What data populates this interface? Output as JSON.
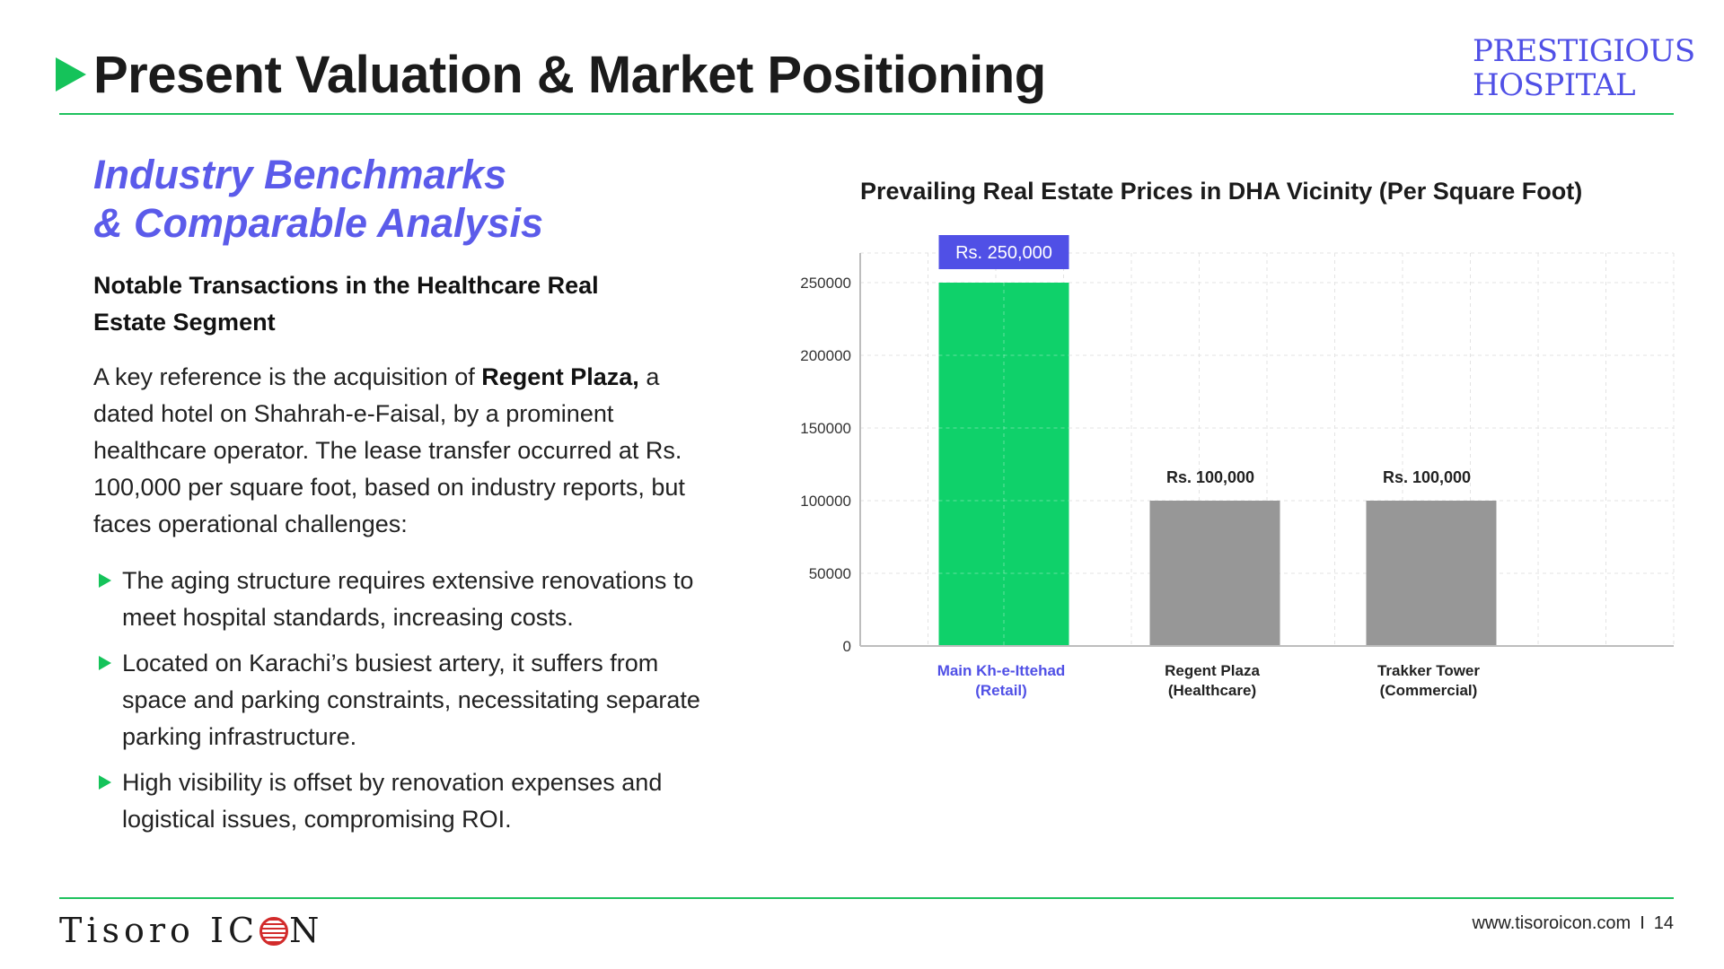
{
  "header": {
    "title": "Present Valuation & Market Positioning",
    "brand_line1": "PRESTIGIOUS",
    "brand_line2": "HOSPITAL"
  },
  "left": {
    "subhead_line1": "Industry Benchmarks",
    "subhead_line2": "& Comparable Analysis",
    "section_label": "Notable Transactions in the Healthcare Real Estate Segment",
    "para_prefix": "A key reference is the acquisition of ",
    "para_bold": "Regent Plaza,",
    "para_suffix": " a dated hotel on Shahrah-e-Faisal, by a prominent healthcare operator. The lease transfer occurred at Rs. 100,000 per square foot, based on industry reports, but faces operational challenges:",
    "bullets": [
      "The aging structure requires extensive renovations to meet hospital standards, increasing costs.",
      "Located on Karachi’s busiest artery, it suffers from space and parking constraints, necessitating separate parking infrastructure.",
      "High visibility is offset by renovation expenses and logistical issues, compromising ROI."
    ]
  },
  "chart_data": {
    "type": "bar",
    "title": "Prevailing Real Estate Prices in DHA Vicinity (Per Square Foot)",
    "categories": [
      [
        "Main Kh-e-Ittehad",
        "(Retail)"
      ],
      [
        "Regent Plaza",
        "(Healthcare)"
      ],
      [
        "Trakker Tower",
        "(Commercial)"
      ]
    ],
    "values": [
      250000,
      100000,
      100000
    ],
    "data_labels": [
      "Rs. 250,000",
      "Rs. 100,000",
      "Rs. 100,000"
    ],
    "ylim": [
      0,
      250000
    ],
    "yticks": [
      0,
      50000,
      100000,
      150000,
      200000,
      250000
    ],
    "colors": [
      "#0fd16a",
      "#979797",
      "#979797"
    ],
    "highlight_color": "#5050e6",
    "grid": true,
    "xlabel": "",
    "ylabel": ""
  },
  "footer": {
    "logo_left": "Tisoro IC",
    "logo_right": "N",
    "url": "www.tisoroicon.com",
    "separator": "I",
    "page_number": "14"
  }
}
